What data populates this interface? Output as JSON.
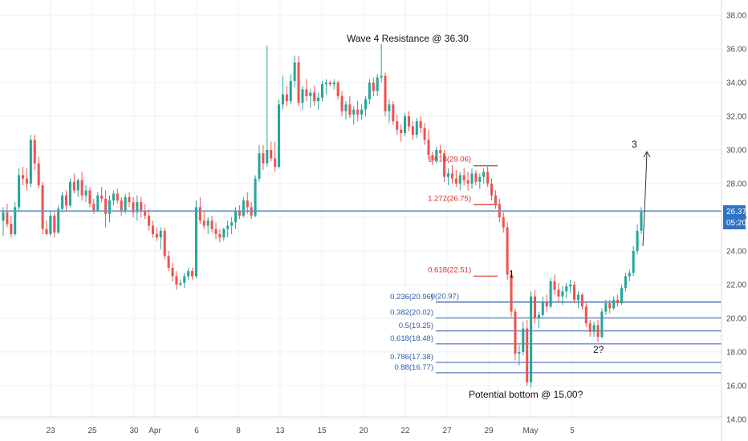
{
  "chart_data": {
    "type": "candlestick",
    "y_axis": {
      "range": [
        14,
        38.5
      ],
      "ticks": [
        "38.00",
        "36.00",
        "34.00",
        "32.00",
        "30.00",
        "28.00",
        "26.00",
        "24.00",
        "22.00",
        "20.00",
        "18.00",
        "16.00",
        "14.00"
      ],
      "tick_values": [
        38,
        36,
        34,
        32,
        30,
        28,
        26,
        24,
        22,
        20,
        18,
        16,
        14
      ]
    },
    "x_axis": {
      "ticks": [
        "23",
        "25",
        "30",
        "Apr",
        "6",
        "8",
        "13",
        "15",
        "20",
        "22",
        "27",
        "29",
        "May",
        "5"
      ],
      "tick_slots": [
        10,
        12,
        14,
        15,
        17,
        19,
        21,
        23,
        25,
        27,
        29,
        31,
        33,
        35
      ]
    },
    "current_price": "26.37",
    "countdown": "05:20",
    "price_line_value": 26.37,
    "colors": {
      "up": "#26a69a",
      "down": "#ef5350",
      "fib_red": "#d9302c",
      "fib_blue": "#2f5ea8",
      "price_line": "#5b9bd5",
      "badge": "#2f73c5"
    },
    "candles": [
      [
        25.8,
        26.6,
        24.9,
        26.3
      ],
      [
        26.3,
        26.8,
        25.4,
        25.6
      ],
      [
        25.6,
        26.1,
        24.8,
        25.0
      ],
      [
        25.0,
        26.9,
        24.9,
        26.6
      ],
      [
        26.6,
        28.9,
        26.4,
        28.5
      ],
      [
        28.5,
        29.0,
        27.9,
        28.3
      ],
      [
        28.3,
        28.9,
        27.6,
        28.0
      ],
      [
        28.0,
        30.9,
        27.8,
        30.6
      ],
      [
        30.6,
        30.9,
        28.8,
        29.2
      ],
      [
        29.2,
        29.6,
        27.7,
        27.9
      ],
      [
        27.9,
        28.1,
        25.0,
        25.3
      ],
      [
        25.3,
        25.8,
        24.9,
        25.0
      ],
      [
        25.0,
        26.4,
        24.9,
        26.1
      ],
      [
        26.1,
        26.3,
        24.8,
        25.1
      ],
      [
        25.1,
        26.7,
        25.0,
        26.5
      ],
      [
        26.5,
        27.5,
        26.3,
        27.3
      ],
      [
        27.3,
        27.6,
        26.4,
        26.7
      ],
      [
        26.7,
        28.3,
        26.6,
        28.1
      ],
      [
        28.1,
        28.6,
        27.4,
        27.6
      ],
      [
        27.6,
        28.3,
        27.2,
        28.2
      ],
      [
        28.2,
        28.7,
        27.0,
        27.3
      ],
      [
        27.3,
        27.9,
        26.9,
        27.6
      ],
      [
        27.6,
        27.8,
        26.6,
        26.8
      ],
      [
        26.8,
        27.1,
        26.2,
        26.4
      ],
      [
        26.4,
        27.5,
        26.3,
        27.3
      ],
      [
        27.3,
        27.8,
        26.9,
        27.1
      ],
      [
        27.1,
        27.6,
        25.4,
        26.2
      ],
      [
        26.2,
        27.3,
        25.7,
        27.0
      ],
      [
        27.0,
        27.6,
        26.7,
        27.4
      ],
      [
        27.4,
        27.7,
        26.8,
        27.0
      ],
      [
        27.0,
        27.2,
        26.1,
        26.4
      ],
      [
        26.4,
        27.4,
        26.2,
        27.2
      ],
      [
        27.2,
        27.5,
        26.6,
        26.9
      ],
      [
        26.9,
        27.2,
        26.0,
        26.3
      ],
      [
        26.3,
        27.3,
        25.8,
        26.9
      ],
      [
        26.9,
        27.2,
        26.0,
        26.4
      ],
      [
        26.4,
        26.8,
        25.9,
        26.1
      ],
      [
        26.1,
        26.5,
        25.2,
        25.5
      ],
      [
        25.5,
        25.8,
        24.8,
        25.0
      ],
      [
        25.0,
        25.4,
        24.6,
        24.8
      ],
      [
        24.8,
        25.4,
        24.1,
        25.2
      ],
      [
        25.2,
        25.4,
        23.5,
        23.7
      ],
      [
        23.7,
        24.0,
        22.8,
        23.0
      ],
      [
        23.0,
        23.3,
        22.2,
        22.5
      ],
      [
        22.5,
        22.8,
        21.7,
        22.0
      ],
      [
        22.0,
        22.3,
        21.9,
        22.1
      ],
      [
        22.1,
        22.7,
        21.8,
        22.5
      ],
      [
        22.5,
        23.0,
        22.3,
        22.8
      ],
      [
        22.8,
        23.0,
        22.3,
        22.5
      ],
      [
        22.5,
        27.0,
        22.4,
        26.6
      ],
      [
        26.6,
        27.2,
        25.6,
        25.8
      ],
      [
        25.8,
        26.4,
        25.3,
        25.5
      ],
      [
        25.5,
        26.0,
        25.0,
        25.8
      ],
      [
        25.8,
        26.1,
        25.1,
        25.3
      ],
      [
        25.3,
        25.7,
        24.7,
        25.0
      ],
      [
        25.0,
        25.3,
        24.5,
        24.8
      ],
      [
        24.8,
        25.4,
        24.6,
        25.3
      ],
      [
        25.3,
        25.8,
        24.8,
        25.5
      ],
      [
        25.5,
        26.0,
        25.0,
        25.7
      ],
      [
        25.7,
        26.6,
        25.3,
        26.4
      ],
      [
        26.4,
        26.7,
        25.9,
        26.1
      ],
      [
        26.1,
        27.2,
        26.0,
        27.0
      ],
      [
        27.0,
        27.5,
        26.2,
        26.6
      ],
      [
        26.6,
        26.9,
        25.9,
        26.1
      ],
      [
        26.1,
        28.5,
        26.0,
        28.3
      ],
      [
        28.3,
        30.3,
        28.1,
        29.8
      ],
      [
        29.8,
        30.3,
        28.8,
        29.2
      ],
      [
        29.2,
        36.2,
        29.0,
        30.0
      ],
      [
        30.0,
        30.5,
        29.3,
        29.5
      ],
      [
        29.5,
        30.5,
        28.7,
        29.0
      ],
      [
        29.0,
        33.0,
        28.9,
        32.7
      ],
      [
        32.7,
        34.4,
        32.4,
        33.3
      ],
      [
        33.3,
        33.8,
        32.6,
        32.9
      ],
      [
        32.9,
        34.5,
        32.7,
        34.1
      ],
      [
        34.1,
        35.6,
        33.7,
        35.2
      ],
      [
        35.2,
        35.6,
        32.6,
        32.8
      ],
      [
        32.8,
        33.8,
        32.4,
        33.6
      ],
      [
        33.6,
        34.2,
        32.9,
        33.2
      ],
      [
        33.2,
        33.6,
        32.5,
        33.4
      ],
      [
        33.4,
        33.8,
        32.6,
        32.9
      ],
      [
        32.9,
        33.4,
        32.4,
        33.1
      ],
      [
        33.1,
        34.1,
        32.9,
        33.9
      ],
      [
        33.9,
        34.2,
        33.3,
        34.0
      ],
      [
        34.0,
        34.1,
        33.8,
        33.9
      ],
      [
        33.9,
        34.2,
        33.6,
        34.0
      ],
      [
        34.0,
        34.1,
        33.0,
        33.2
      ],
      [
        33.2,
        33.5,
        32.0,
        32.3
      ],
      [
        32.3,
        32.9,
        31.8,
        32.7
      ],
      [
        32.7,
        33.2,
        31.9,
        32.1
      ],
      [
        32.1,
        32.6,
        31.5,
        32.4
      ],
      [
        32.4,
        32.9,
        31.7,
        32.1
      ],
      [
        32.1,
        32.7,
        31.8,
        32.4
      ],
      [
        32.4,
        33.2,
        32.0,
        33.0
      ],
      [
        33.0,
        34.2,
        32.7,
        34.0
      ],
      [
        34.0,
        34.3,
        33.2,
        33.5
      ],
      [
        33.5,
        34.5,
        33.2,
        34.3
      ],
      [
        34.3,
        36.3,
        34.0,
        34.4
      ],
      [
        34.4,
        34.6,
        32.0,
        32.3
      ],
      [
        32.3,
        33.0,
        31.6,
        32.7
      ],
      [
        32.7,
        32.9,
        31.5,
        31.7
      ],
      [
        31.7,
        32.1,
        30.9,
        31.2
      ],
      [
        31.2,
        31.5,
        30.5,
        31.0
      ],
      [
        31.0,
        32.2,
        30.8,
        32.0
      ],
      [
        32.0,
        32.3,
        31.1,
        31.4
      ],
      [
        31.4,
        31.7,
        30.6,
        30.9
      ],
      [
        30.9,
        31.9,
        30.7,
        31.7
      ],
      [
        31.7,
        32.0,
        31.0,
        31.3
      ],
      [
        31.3,
        31.6,
        30.3,
        30.6
      ],
      [
        30.6,
        31.2,
        29.4,
        29.7
      ],
      [
        29.7,
        29.9,
        29.1,
        29.4
      ],
      [
        29.4,
        30.2,
        29.2,
        30.0
      ],
      [
        30.0,
        30.3,
        29.6,
        29.8
      ],
      [
        29.8,
        30.0,
        28.1,
        28.4
      ],
      [
        28.4,
        28.9,
        27.9,
        28.6
      ],
      [
        28.6,
        29.1,
        28.0,
        28.3
      ],
      [
        28.3,
        28.8,
        27.8,
        28.0
      ],
      [
        28.0,
        28.7,
        27.6,
        28.5
      ],
      [
        28.5,
        28.9,
        27.9,
        28.2
      ],
      [
        28.2,
        28.7,
        27.6,
        28.0
      ],
      [
        28.0,
        28.9,
        27.7,
        28.6
      ],
      [
        28.6,
        28.8,
        27.9,
        28.1
      ],
      [
        28.1,
        28.6,
        27.7,
        28.4
      ],
      [
        28.4,
        28.9,
        28.0,
        28.7
      ],
      [
        28.7,
        29.0,
        27.8,
        28.0
      ],
      [
        28.0,
        28.3,
        27.0,
        27.3
      ],
      [
        27.3,
        27.6,
        26.5,
        26.8
      ],
      [
        26.8,
        27.1,
        25.7,
        26.0
      ],
      [
        26.0,
        26.3,
        25.1,
        25.4
      ],
      [
        25.4,
        25.7,
        22.3,
        22.6
      ],
      [
        22.6,
        22.9,
        20.1,
        20.4
      ],
      [
        20.4,
        20.6,
        17.5,
        17.9
      ],
      [
        17.9,
        18.4,
        17.2,
        18.0
      ],
      [
        18.0,
        19.8,
        17.8,
        19.4
      ],
      [
        19.4,
        19.9,
        16.0,
        16.2
      ],
      [
        16.2,
        21.6,
        15.9,
        21.3
      ],
      [
        21.3,
        21.7,
        19.7,
        20.0
      ],
      [
        20.0,
        20.4,
        19.4,
        20.2
      ],
      [
        20.2,
        21.3,
        20.1,
        21.0
      ],
      [
        21.0,
        21.4,
        20.4,
        20.7
      ],
      [
        20.7,
        22.4,
        20.6,
        22.2
      ],
      [
        22.2,
        22.6,
        21.4,
        21.7
      ],
      [
        21.7,
        22.1,
        21.0,
        21.3
      ],
      [
        21.3,
        21.9,
        20.8,
        21.6
      ],
      [
        21.6,
        22.1,
        21.2,
        21.9
      ],
      [
        21.9,
        22.3,
        21.5,
        22.0
      ],
      [
        22.0,
        22.2,
        20.9,
        21.1
      ],
      [
        21.1,
        21.6,
        20.6,
        21.4
      ],
      [
        21.4,
        21.5,
        20.5,
        20.7
      ],
      [
        20.7,
        20.9,
        19.5,
        19.7
      ],
      [
        19.7,
        19.9,
        18.9,
        19.2
      ],
      [
        19.2,
        19.8,
        18.9,
        19.6
      ],
      [
        19.6,
        19.9,
        18.6,
        18.9
      ],
      [
        18.9,
        20.6,
        18.8,
        20.4
      ],
      [
        20.4,
        21.1,
        20.2,
        20.9
      ],
      [
        20.9,
        21.1,
        20.3,
        20.6
      ],
      [
        20.6,
        21.3,
        20.5,
        21.1
      ],
      [
        21.1,
        21.4,
        20.7,
        20.9
      ],
      [
        20.9,
        22.0,
        20.8,
        21.8
      ],
      [
        21.8,
        22.7,
        21.6,
        22.5
      ],
      [
        22.5,
        22.9,
        22.2,
        22.7
      ],
      [
        22.7,
        24.3,
        22.5,
        24.0
      ],
      [
        24.0,
        25.6,
        23.8,
        25.2
      ],
      [
        25.2,
        26.6,
        25.0,
        26.37
      ]
    ],
    "fib_levels_red": [
      {
        "label": "1.618(29.06)",
        "value": 29.06
      },
      {
        "label": "1.272(26.75)",
        "value": 26.75
      },
      {
        "label": "0.618(22.51)",
        "value": 22.51
      }
    ],
    "fib_levels_blue": [
      {
        "label": "0.236(20.96)",
        "value": 20.96
      },
      {
        "label": "0(20.97)",
        "value": 20.97
      },
      {
        "label": "0.382(20.02)",
        "value": 20.02
      },
      {
        "label": "0.5(19.25)",
        "value": 19.25
      },
      {
        "label": "0.618(18.48)",
        "value": 18.48
      },
      {
        "label": "0.786(17.38)",
        "value": 17.38
      },
      {
        "label": "0.88(16.77)",
        "value": 16.77
      }
    ],
    "annotations": {
      "wave4": "Wave 4 Resistance @ 36.30",
      "bottom": "Potential bottom @ 15.00?",
      "wave1": "1",
      "wave2": "2?",
      "wave3": "3"
    },
    "projection": {
      "from_value": 24.3,
      "to_value": 29.9
    }
  }
}
